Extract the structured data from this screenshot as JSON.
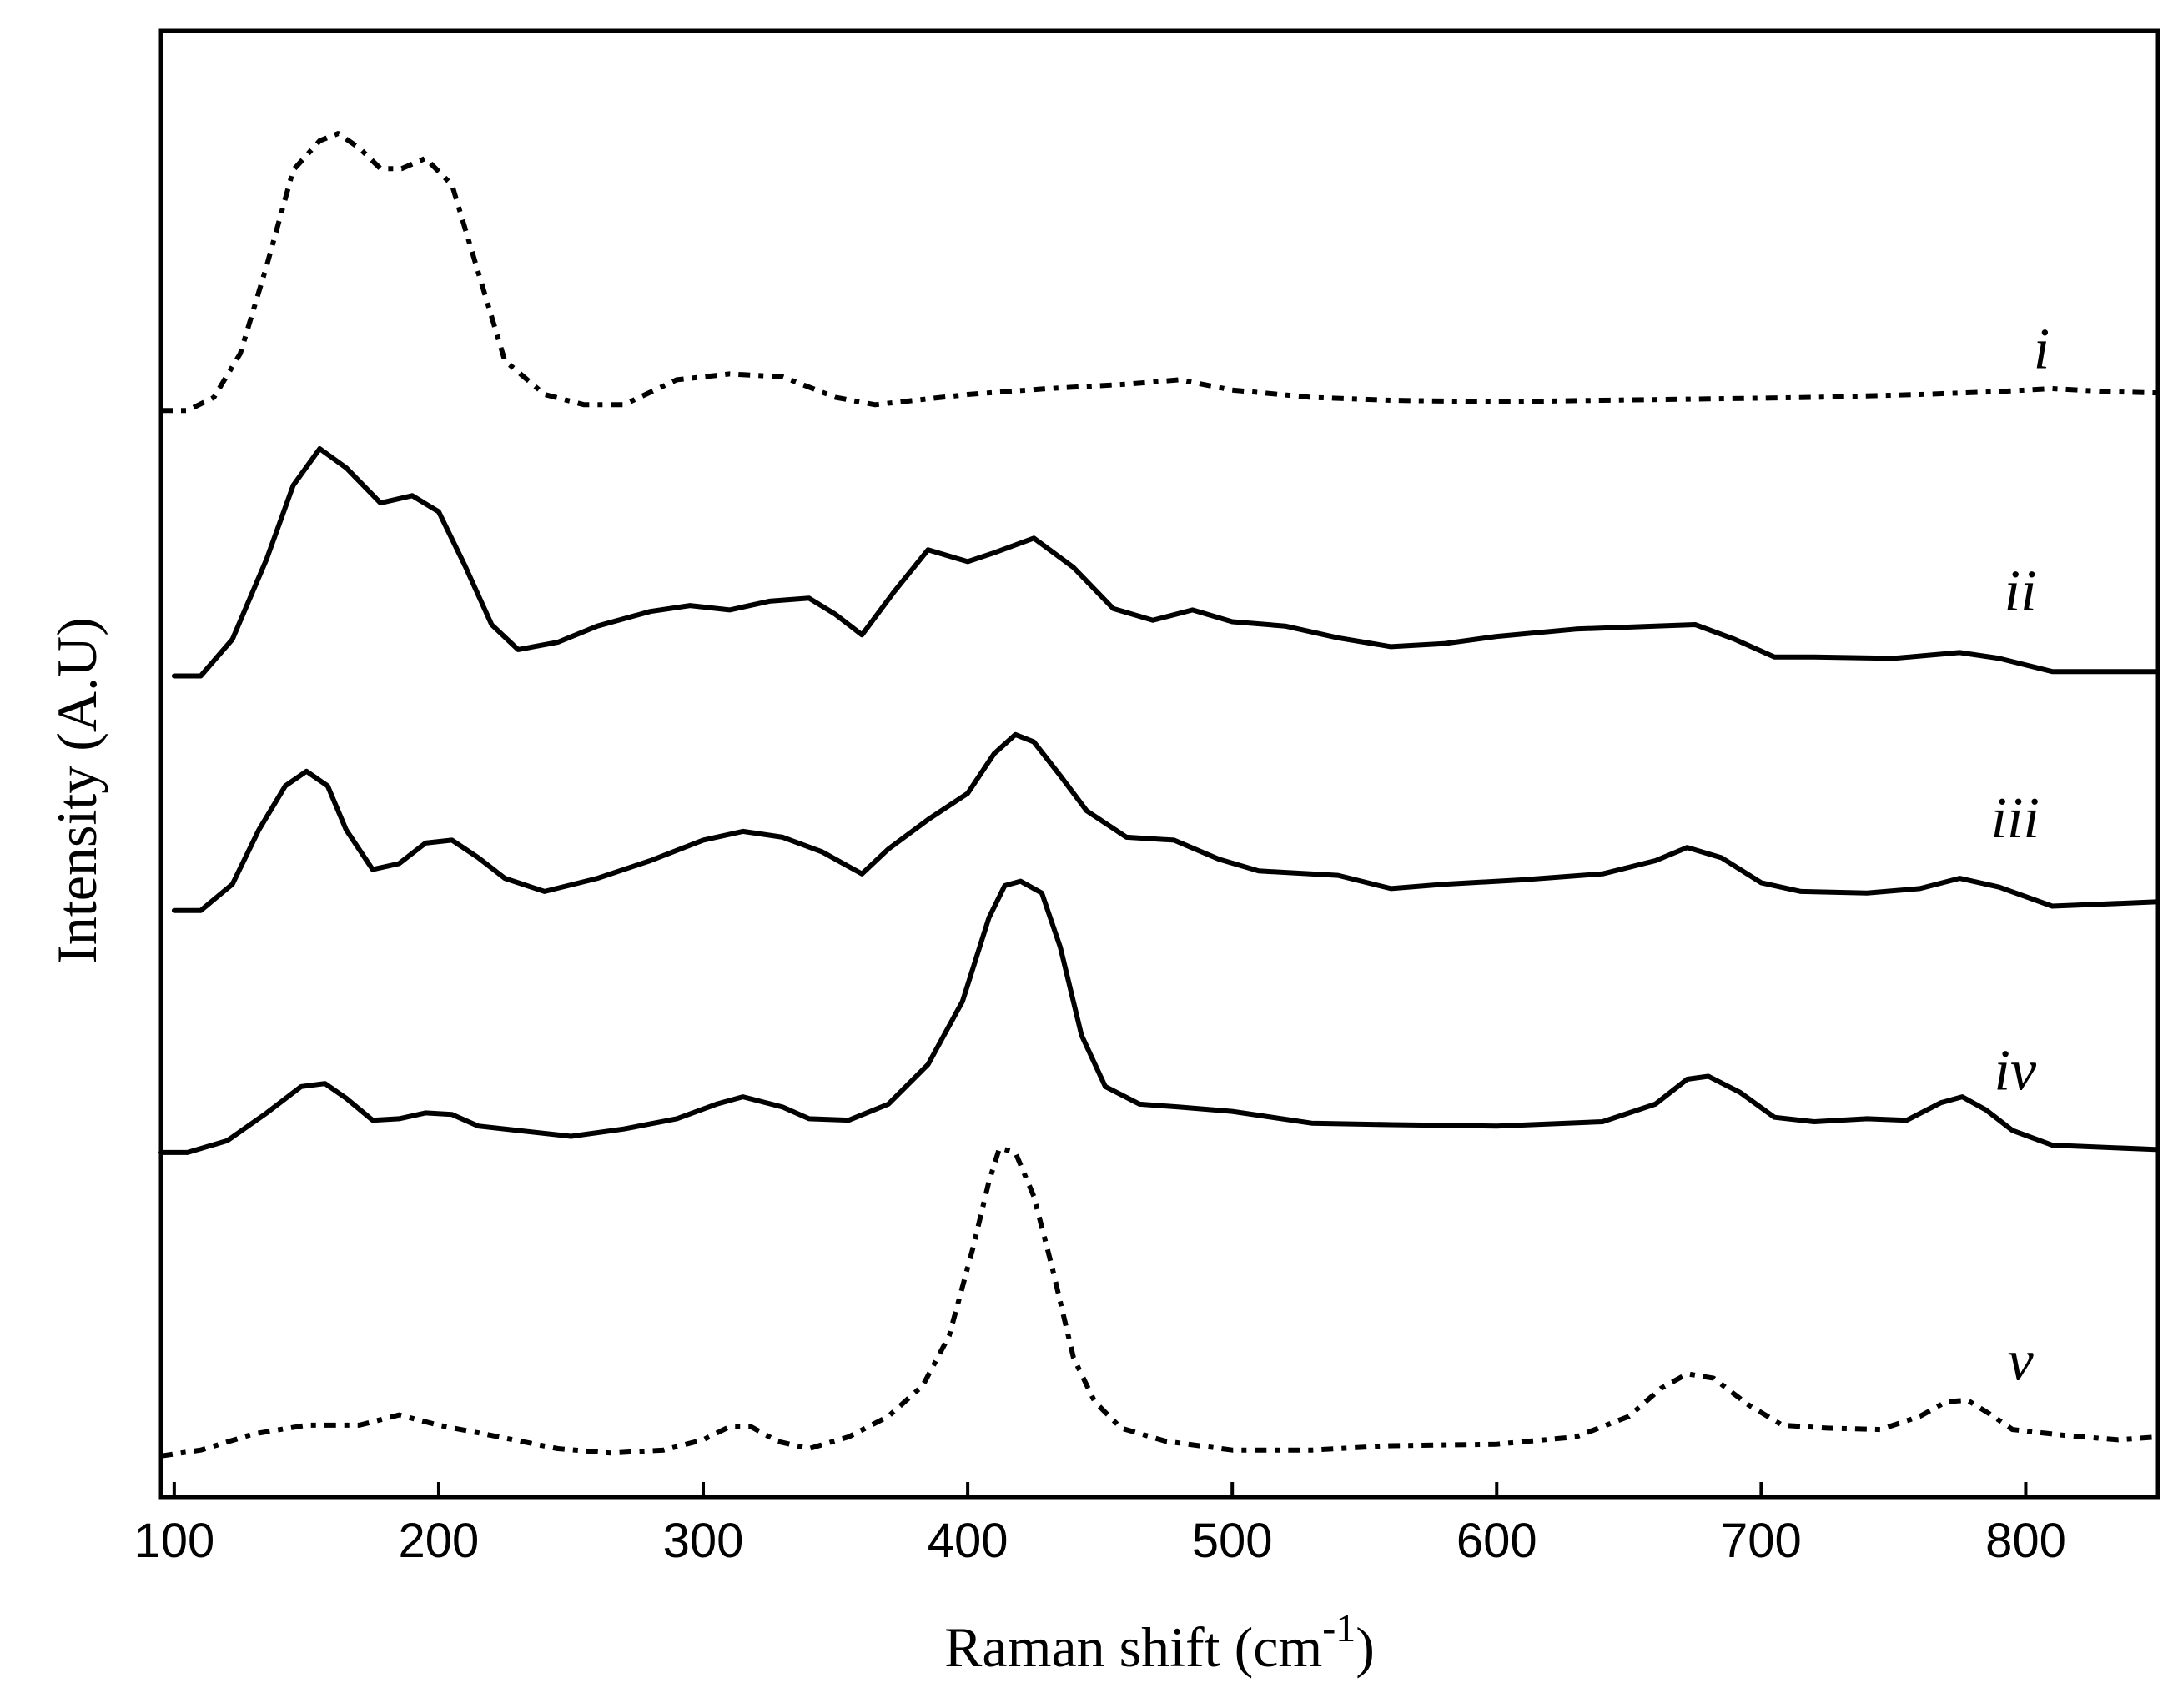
{
  "chart_data": {
    "type": "line",
    "title": "",
    "xlabel": "Raman shift (cm",
    "xlabel_sup": "-1",
    "xlabel_end": ")",
    "ylabel": "Intensity (A.U)",
    "xlim": [
      95,
      850
    ],
    "ylim": [
      0,
      100
    ],
    "grid": false,
    "legend": "none",
    "xticks": [
      100,
      200,
      300,
      400,
      500,
      600,
      700,
      800
    ],
    "xtick_labels": [
      "100",
      "200",
      "300",
      "400",
      "500",
      "600",
      "700",
      "800"
    ],
    "series": [
      {
        "name": "i",
        "style": "dash-dot",
        "points": [
          [
            95,
            74.1
          ],
          [
            105,
            74.1
          ],
          [
            115,
            75
          ],
          [
            125,
            78
          ],
          [
            135,
            84
          ],
          [
            145,
            90.5
          ],
          [
            155,
            92.5
          ],
          [
            162,
            93
          ],
          [
            170,
            92
          ],
          [
            178,
            90.6
          ],
          [
            186,
            90.6
          ],
          [
            195,
            91.3
          ],
          [
            205,
            89.5
          ],
          [
            215,
            83.5
          ],
          [
            225,
            77.5
          ],
          [
            240,
            75.2
          ],
          [
            255,
            74.5
          ],
          [
            270,
            74.5
          ],
          [
            290,
            76.2
          ],
          [
            310,
            76.6
          ],
          [
            330,
            76.4
          ],
          [
            350,
            75
          ],
          [
            365,
            74.5
          ],
          [
            380,
            74.8
          ],
          [
            400,
            75.2
          ],
          [
            430,
            75.6
          ],
          [
            460,
            75.9
          ],
          [
            480,
            76.2
          ],
          [
            500,
            75.5
          ],
          [
            530,
            75
          ],
          [
            560,
            74.8
          ],
          [
            600,
            74.7
          ],
          [
            640,
            74.8
          ],
          [
            680,
            74.9
          ],
          [
            720,
            75
          ],
          [
            760,
            75.2
          ],
          [
            790,
            75.4
          ],
          [
            810,
            75.6
          ],
          [
            830,
            75.4
          ],
          [
            850,
            75.3
          ]
        ]
      },
      {
        "name": "ii",
        "style": "solid",
        "points": [
          [
            100,
            56
          ],
          [
            110,
            56
          ],
          [
            122,
            58.5
          ],
          [
            135,
            64
          ],
          [
            145,
            69
          ],
          [
            155,
            71.5
          ],
          [
            165,
            70.2
          ],
          [
            178,
            67.8
          ],
          [
            190,
            68.3
          ],
          [
            200,
            67.2
          ],
          [
            210,
            63.5
          ],
          [
            220,
            59.5
          ],
          [
            230,
            57.8
          ],
          [
            245,
            58.3
          ],
          [
            260,
            59.4
          ],
          [
            280,
            60.4
          ],
          [
            295,
            60.8
          ],
          [
            310,
            60.5
          ],
          [
            325,
            61.1
          ],
          [
            340,
            61.3
          ],
          [
            350,
            60.2
          ],
          [
            360,
            58.8
          ],
          [
            372,
            61.7
          ],
          [
            385,
            64.6
          ],
          [
            400,
            63.8
          ],
          [
            410,
            64.4
          ],
          [
            425,
            65.4
          ],
          [
            440,
            63.4
          ],
          [
            455,
            60.6
          ],
          [
            470,
            59.8
          ],
          [
            485,
            60.5
          ],
          [
            500,
            59.7
          ],
          [
            520,
            59.4
          ],
          [
            540,
            58.6
          ],
          [
            560,
            58
          ],
          [
            580,
            58.2
          ],
          [
            600,
            58.7
          ],
          [
            630,
            59.2
          ],
          [
            660,
            59.4
          ],
          [
            675,
            59.5
          ],
          [
            690,
            58.5
          ],
          [
            705,
            57.3
          ],
          [
            720,
            57.3
          ],
          [
            750,
            57.2
          ],
          [
            775,
            57.6
          ],
          [
            790,
            57.2
          ],
          [
            810,
            56.3
          ],
          [
            850,
            56.3
          ]
        ]
      },
      {
        "name": "iii",
        "style": "solid",
        "points": [
          [
            100,
            40
          ],
          [
            110,
            40
          ],
          [
            122,
            41.8
          ],
          [
            132,
            45.5
          ],
          [
            142,
            48.5
          ],
          [
            150,
            49.5
          ],
          [
            158,
            48.5
          ],
          [
            165,
            45.5
          ],
          [
            175,
            42.8
          ],
          [
            185,
            43.2
          ],
          [
            195,
            44.6
          ],
          [
            205,
            44.8
          ],
          [
            215,
            43.6
          ],
          [
            225,
            42.2
          ],
          [
            240,
            41.3
          ],
          [
            260,
            42.2
          ],
          [
            280,
            43.4
          ],
          [
            300,
            44.8
          ],
          [
            315,
            45.4
          ],
          [
            330,
            45
          ],
          [
            345,
            44
          ],
          [
            360,
            42.5
          ],
          [
            370,
            44.2
          ],
          [
            385,
            46.2
          ],
          [
            400,
            48
          ],
          [
            410,
            50.7
          ],
          [
            418,
            52
          ],
          [
            425,
            51.5
          ],
          [
            435,
            49.2
          ],
          [
            445,
            46.8
          ],
          [
            460,
            45
          ],
          [
            478,
            44.8
          ],
          [
            495,
            43.5
          ],
          [
            510,
            42.7
          ],
          [
            540,
            42.4
          ],
          [
            560,
            41.5
          ],
          [
            580,
            41.8
          ],
          [
            610,
            42.1
          ],
          [
            640,
            42.5
          ],
          [
            660,
            43.4
          ],
          [
            672,
            44.3
          ],
          [
            685,
            43.6
          ],
          [
            700,
            41.9
          ],
          [
            715,
            41.3
          ],
          [
            740,
            41.2
          ],
          [
            760,
            41.5
          ],
          [
            775,
            42.2
          ],
          [
            790,
            41.6
          ],
          [
            810,
            40.3
          ],
          [
            850,
            40.6
          ]
        ]
      },
      {
        "name": "iv",
        "style": "solid",
        "points": [
          [
            95,
            23.5
          ],
          [
            105,
            23.5
          ],
          [
            120,
            24.3
          ],
          [
            135,
            26.2
          ],
          [
            148,
            28
          ],
          [
            157,
            28.2
          ],
          [
            165,
            27.2
          ],
          [
            175,
            25.7
          ],
          [
            185,
            25.8
          ],
          [
            195,
            26.2
          ],
          [
            205,
            26.1
          ],
          [
            215,
            25.3
          ],
          [
            230,
            25
          ],
          [
            250,
            24.6
          ],
          [
            270,
            25.1
          ],
          [
            290,
            25.8
          ],
          [
            305,
            26.8
          ],
          [
            315,
            27.3
          ],
          [
            330,
            26.6
          ],
          [
            340,
            25.8
          ],
          [
            355,
            25.7
          ],
          [
            370,
            26.8
          ],
          [
            385,
            29.5
          ],
          [
            398,
            33.8
          ],
          [
            408,
            39.5
          ],
          [
            414,
            41.7
          ],
          [
            420,
            42
          ],
          [
            428,
            41.2
          ],
          [
            435,
            37.5
          ],
          [
            443,
            31.5
          ],
          [
            452,
            28
          ],
          [
            465,
            26.8
          ],
          [
            480,
            26.6
          ],
          [
            500,
            26.3
          ],
          [
            530,
            25.5
          ],
          [
            560,
            25.4
          ],
          [
            600,
            25.3
          ],
          [
            640,
            25.6
          ],
          [
            660,
            26.8
          ],
          [
            672,
            28.5
          ],
          [
            680,
            28.7
          ],
          [
            692,
            27.6
          ],
          [
            705,
            25.9
          ],
          [
            720,
            25.6
          ],
          [
            740,
            25.8
          ],
          [
            755,
            25.7
          ],
          [
            768,
            26.9
          ],
          [
            776,
            27.3
          ],
          [
            785,
            26.4
          ],
          [
            795,
            25
          ],
          [
            810,
            24
          ],
          [
            850,
            23.7
          ]
        ]
      },
      {
        "name": "v",
        "style": "dash-dot",
        "points": [
          [
            95,
            2.8
          ],
          [
            110,
            3.2
          ],
          [
            130,
            4.3
          ],
          [
            150,
            4.9
          ],
          [
            170,
            4.9
          ],
          [
            185,
            5.6
          ],
          [
            200,
            4.9
          ],
          [
            220,
            4.2
          ],
          [
            245,
            3.3
          ],
          [
            265,
            3
          ],
          [
            285,
            3.2
          ],
          [
            300,
            3.9
          ],
          [
            310,
            4.8
          ],
          [
            318,
            4.8
          ],
          [
            328,
            3.8
          ],
          [
            340,
            3.3
          ],
          [
            355,
            4.1
          ],
          [
            370,
            5.5
          ],
          [
            383,
            7.6
          ],
          [
            393,
            11
          ],
          [
            402,
            17
          ],
          [
            408,
            21.5
          ],
          [
            412,
            23.8
          ],
          [
            418,
            23.5
          ],
          [
            425,
            20.5
          ],
          [
            432,
            15.6
          ],
          [
            440,
            9.5
          ],
          [
            448,
            6.5
          ],
          [
            458,
            4.7
          ],
          [
            475,
            3.8
          ],
          [
            500,
            3.2
          ],
          [
            530,
            3.2
          ],
          [
            560,
            3.5
          ],
          [
            600,
            3.6
          ],
          [
            630,
            4.1
          ],
          [
            650,
            5.5
          ],
          [
            662,
            7.4
          ],
          [
            672,
            8.4
          ],
          [
            682,
            8.1
          ],
          [
            695,
            6.3
          ],
          [
            708,
            4.9
          ],
          [
            725,
            4.7
          ],
          [
            745,
            4.6
          ],
          [
            760,
            5.5
          ],
          [
            770,
            6.5
          ],
          [
            778,
            6.6
          ],
          [
            787,
            5.6
          ],
          [
            795,
            4.6
          ],
          [
            815,
            4.2
          ],
          [
            835,
            3.9
          ],
          [
            850,
            4.1
          ]
        ]
      }
    ],
    "series_labels": [
      "i",
      "ii",
      "iii",
      "iv",
      "v"
    ],
    "series_label_positions": [
      {
        "name": "i",
        "x": 806,
        "y": 77
      },
      {
        "name": "ii",
        "x": 798,
        "y": 60.5
      },
      {
        "name": "iii",
        "x": 796,
        "y": 45
      },
      {
        "name": "iv",
        "x": 796,
        "y": 27.8
      },
      {
        "name": "v",
        "x": 798,
        "y": 8
      }
    ]
  }
}
